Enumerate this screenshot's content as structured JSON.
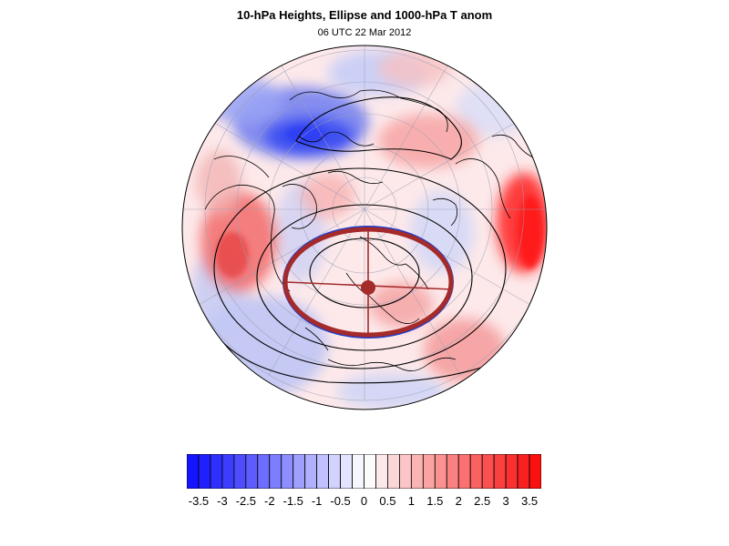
{
  "figure": {
    "title": "10-hPa Heights, Ellipse and 1000-hPa T anom",
    "subtitle": "06 UTC 22 Mar 2012"
  },
  "colorbar": {
    "labels": [
      "-3.5",
      "-3",
      "-2.5",
      "-2",
      "-1.5",
      "-1",
      "-0.5",
      "0",
      "0.5",
      "1",
      "1.5",
      "2",
      "2.5",
      "3",
      "3.5"
    ],
    "min_color": "#1414ff",
    "max_color": "#ff1414",
    "mid_color": "#ffffff"
  },
  "colors": {
    "ellipse": "#a52a2a",
    "ellipse_inner": "#1e3ccc",
    "contour": "#000000",
    "coastline": "#000000",
    "graticule": "#9aa0b4"
  }
}
